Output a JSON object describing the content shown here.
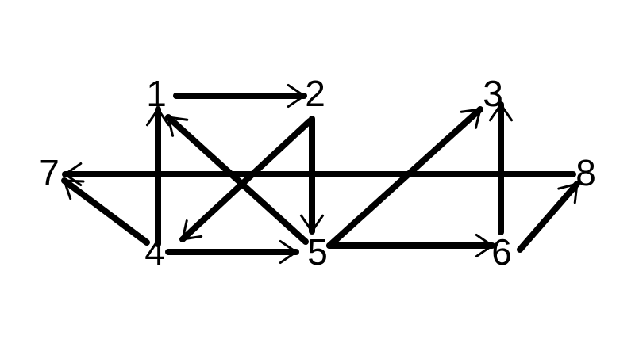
{
  "graph": {
    "nodes": [
      {
        "id": "n1",
        "label": "1"
      },
      {
        "id": "n2",
        "label": "2"
      },
      {
        "id": "n3",
        "label": "3"
      },
      {
        "id": "n4",
        "label": "4"
      },
      {
        "id": "n5",
        "label": "5"
      },
      {
        "id": "n6",
        "label": "6"
      },
      {
        "id": "n7",
        "label": "7"
      },
      {
        "id": "n8",
        "label": "8"
      }
    ],
    "edges": [
      {
        "from": "1",
        "to": "2"
      },
      {
        "from": "4",
        "to": "1"
      },
      {
        "from": "5",
        "to": "1"
      },
      {
        "from": "2",
        "to": "5"
      },
      {
        "from": "2",
        "to": "4"
      },
      {
        "from": "4",
        "to": "5"
      },
      {
        "from": "4",
        "to": "7"
      },
      {
        "from": "8",
        "to": "7"
      },
      {
        "from": "5",
        "to": "3"
      },
      {
        "from": "5",
        "to": "6"
      },
      {
        "from": "6",
        "to": "3"
      },
      {
        "from": "6",
        "to": "8"
      }
    ],
    "edge_color": "#000000",
    "background": "#ffffff"
  }
}
